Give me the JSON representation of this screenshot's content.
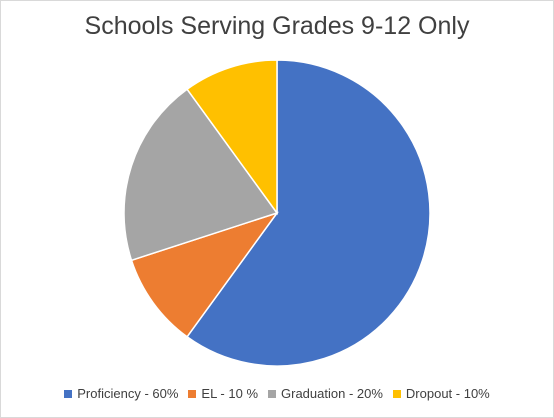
{
  "chart_data": {
    "type": "pie",
    "title": "Schools Serving Grades 9-12 Only",
    "slices": [
      {
        "label": "Proficiency - 60%",
        "value": 60,
        "color": "#4472c4"
      },
      {
        "label": "EL - 10 %",
        "value": 10,
        "color": "#ed7d31"
      },
      {
        "label": "Graduation  - 20%",
        "value": 20,
        "color": "#a5a5a5"
      },
      {
        "label": "Dropout - 10%",
        "value": 10,
        "color": "#ffc000"
      }
    ],
    "legend_position": "bottom"
  }
}
